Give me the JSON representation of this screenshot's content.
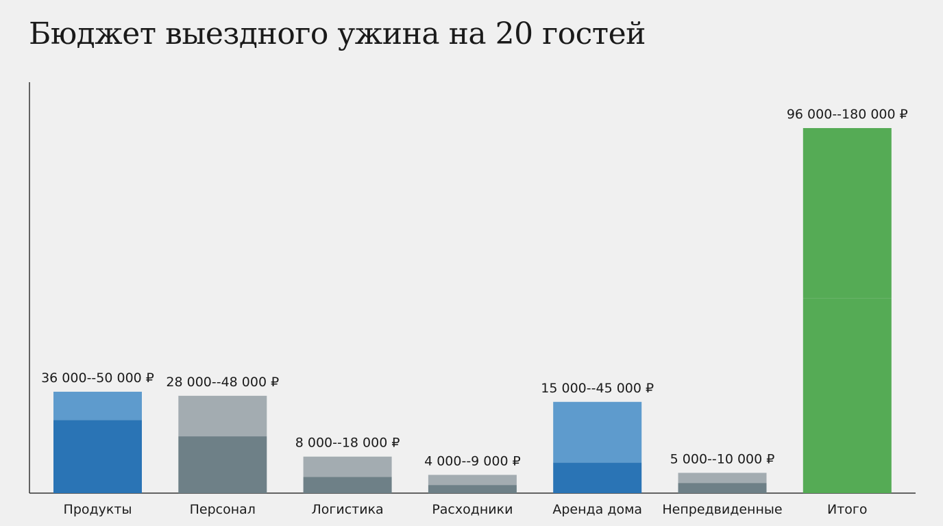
{
  "chart_data": {
    "type": "bar",
    "stacked_range": true,
    "title": "Бюджет выездного ужина на 20 гостей",
    "xlabel": "",
    "ylabel": "",
    "currency": "₽",
    "categories": [
      "Продукты",
      "Персонал",
      "Логистика",
      "Расходники",
      "Аренда дома",
      "Непредвиденные",
      "Итого"
    ],
    "min_values": [
      36000,
      28000,
      8000,
      4000,
      15000,
      5000,
      96000
    ],
    "max_values": [
      50000,
      48000,
      18000,
      9000,
      45000,
      10000,
      180000
    ],
    "data_labels": [
      "36 000--50 000 ₽",
      "28 000--48 000 ₽",
      "8 000--18 000 ₽",
      "4 000--9 000 ₽",
      "15 000--45 000 ₽",
      "5 000--10 000 ₽",
      "96 000--180 000 ₽"
    ],
    "bar_colors": [
      "blue",
      "gray",
      "gray",
      "gray",
      "blue",
      "gray",
      "green"
    ],
    "colors": {
      "blue_min": "#2a74b5",
      "blue_max": "#5e9bcd",
      "gray_min": "#6e8087",
      "gray_max": "#a3acb1",
      "green_min": "#55ab55",
      "green_max": "#55ab55"
    },
    "ylim": [
      0,
      180000
    ],
    "grid": false,
    "y_ticks_shown": false,
    "legend": "none"
  }
}
